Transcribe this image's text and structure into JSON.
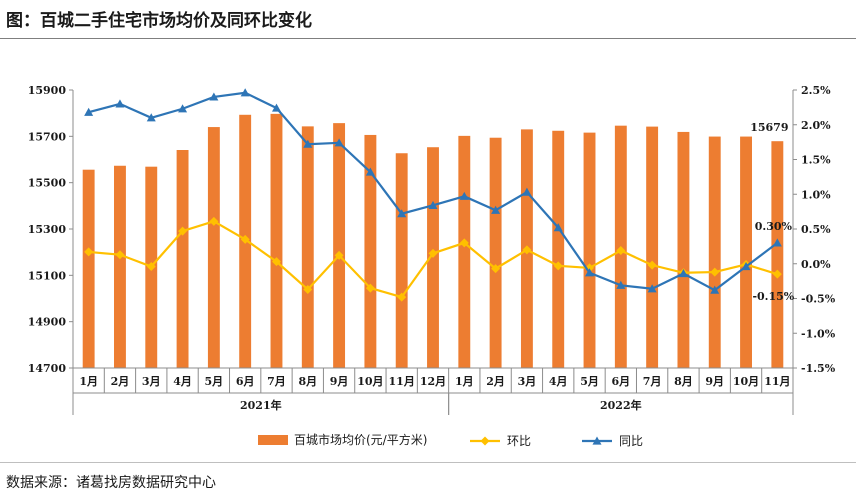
{
  "header": {
    "title": "图：百城二手住宅市场均价及同环比变化"
  },
  "footer": {
    "source": "数据来源：诸葛找房数据研究中心"
  },
  "colors": {
    "bar": "#ED7D31",
    "huanbi": "#FFC000",
    "tongbi": "#2E75B6"
  },
  "chart_data": {
    "type": "bar",
    "categories": [
      "1月",
      "2月",
      "3月",
      "4月",
      "5月",
      "6月",
      "7月",
      "8月",
      "9月",
      "10月",
      "11月",
      "12月",
      "1月",
      "2月",
      "3月",
      "4月",
      "5月",
      "6月",
      "7月",
      "8月",
      "9月",
      "10月",
      "11月"
    ],
    "groups": [
      {
        "label": "2021年",
        "start": 0,
        "end": 11
      },
      {
        "label": "2022年",
        "start": 12,
        "end": 22
      }
    ],
    "series": [
      {
        "name": "百城市场均价(元/平方米)",
        "type": "bar",
        "axis": "left",
        "values": [
          15556,
          15573,
          15569,
          15641,
          15740,
          15793,
          15797,
          15743,
          15757,
          15706,
          15627,
          15653,
          15702,
          15694,
          15730,
          15724,
          15716,
          15746,
          15742,
          15719,
          15699,
          15699,
          15679
        ]
      },
      {
        "name": "环比",
        "type": "line",
        "axis": "right",
        "marker": "diamond",
        "values": [
          0.17,
          0.13,
          -0.04,
          0.47,
          0.61,
          0.35,
          0.03,
          -0.37,
          0.12,
          -0.35,
          -0.48,
          0.15,
          0.3,
          -0.07,
          0.2,
          -0.03,
          -0.06,
          0.19,
          -0.02,
          -0.13,
          -0.12,
          -0.01,
          -0.15
        ]
      },
      {
        "name": "同比",
        "type": "line",
        "axis": "right",
        "marker": "triangle",
        "values": [
          2.18,
          2.3,
          2.1,
          2.23,
          2.4,
          2.46,
          2.24,
          1.72,
          1.74,
          1.32,
          0.72,
          0.84,
          0.97,
          0.77,
          1.03,
          0.52,
          -0.13,
          -0.31,
          -0.36,
          -0.14,
          -0.38,
          -0.04,
          0.3
        ]
      }
    ],
    "y_left": {
      "min": 14700,
      "max": 15900,
      "ticks": [
        "14700",
        "14900",
        "15100",
        "15300",
        "15500",
        "15700",
        "15900"
      ]
    },
    "y_right": {
      "min": -1.5,
      "max": 2.5,
      "ticks": [
        "-1.5%",
        "-1.0%",
        "-0.5%",
        "0.0%",
        "0.5%",
        "1.0%",
        "1.5%",
        "2.0%",
        "2.5%"
      ]
    },
    "annotations": [
      {
        "text": "15679",
        "series": 0,
        "index": 22
      },
      {
        "text": "0.30%",
        "series": 2,
        "index": 22
      },
      {
        "text": "-0.15%",
        "series": 1,
        "index": 22
      }
    ],
    "legend": {
      "position": "bottom",
      "items": [
        "百城市场均价(元/平方米)",
        "环比",
        "同比"
      ]
    },
    "grid": false
  }
}
